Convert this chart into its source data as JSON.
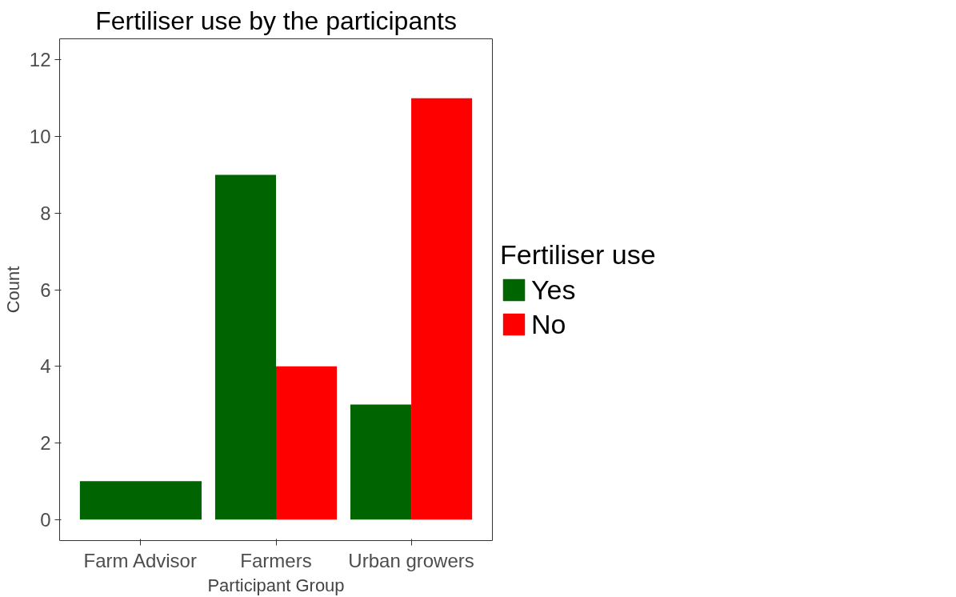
{
  "chart_data": {
    "type": "bar",
    "title": "Fertiliser use by the participants",
    "xlabel": "Participant Group",
    "ylabel": "Count",
    "legend_title": "Fertiliser use",
    "categories": [
      "Farm Advisor",
      "Farmers",
      "Urban growers"
    ],
    "series": [
      {
        "name": "Yes",
        "color": "#006400",
        "values": [
          1,
          9,
          3
        ]
      },
      {
        "name": "No",
        "color": "#ff0000",
        "values": [
          null,
          4,
          11
        ]
      }
    ],
    "ylim": [
      -0.55,
      12.55
    ],
    "yticks": [
      0,
      2,
      4,
      6,
      8,
      10,
      12
    ],
    "grid": false,
    "legend": "right"
  }
}
